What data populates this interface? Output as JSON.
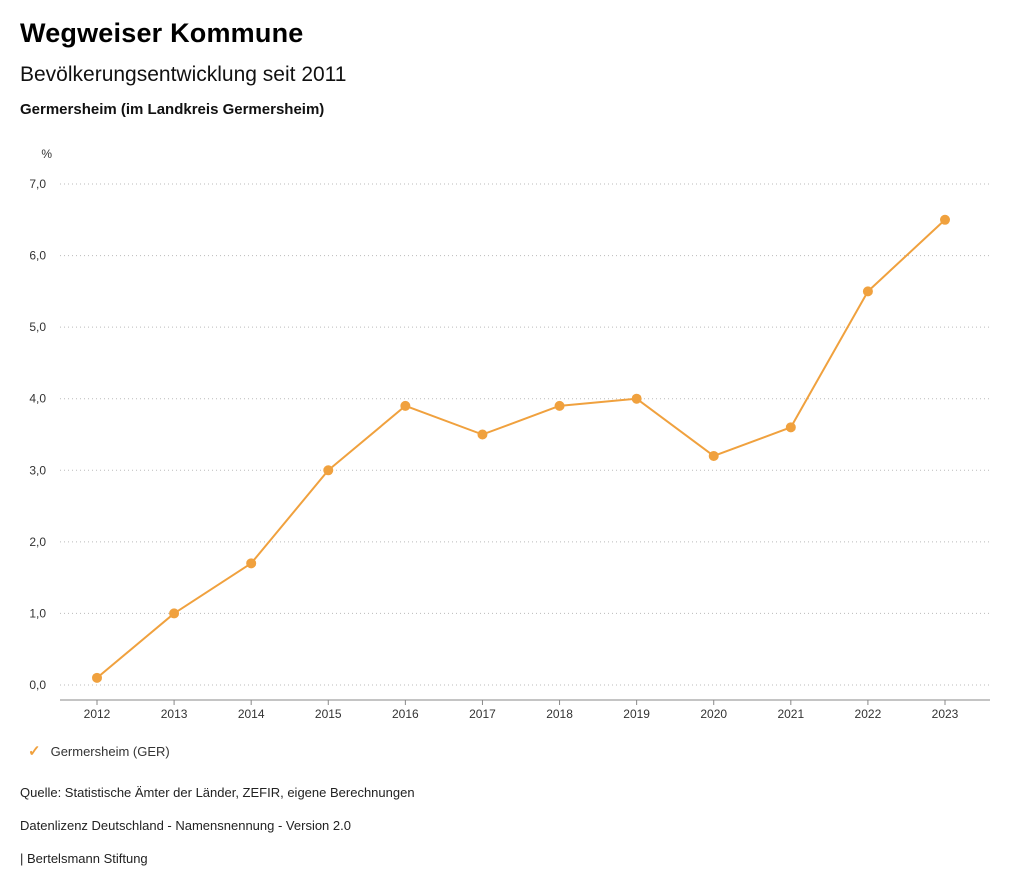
{
  "header": {
    "title": "Wegweiser Kommune",
    "subtitle": "Bevölkerungsentwicklung seit 2011",
    "region": "Germersheim (im Landkreis Germersheim)"
  },
  "chart_data": {
    "type": "line",
    "title": "Bevölkerungsentwicklung seit 2011",
    "unit_label": "%",
    "x": [
      2012,
      2013,
      2014,
      2015,
      2016,
      2017,
      2018,
      2019,
      2020,
      2021,
      2022,
      2023
    ],
    "series": [
      {
        "name": "Germersheim (GER)",
        "values": [
          0.1,
          1.0,
          1.7,
          3.0,
          3.9,
          3.5,
          3.9,
          4.0,
          3.2,
          3.6,
          5.5,
          6.5
        ],
        "color": "#f0a13e"
      }
    ],
    "ylim": [
      0,
      7
    ],
    "ytick_labels": [
      "0,0",
      "1,0",
      "2,0",
      "3,0",
      "4,0",
      "5,0",
      "6,0",
      "7,0"
    ],
    "grid": "horizontal-dotted",
    "grid_color": "#bbbbbb",
    "axis_color": "#888888",
    "legend_position": "bottom-left"
  },
  "legend": {
    "items": [
      {
        "label": "Germersheim (GER)",
        "marker": "check",
        "color": "#f0a13e"
      }
    ]
  },
  "footer": {
    "source": "Quelle: Statistische Ämter der Länder, ZEFIR, eigene Berechnungen",
    "license": "Datenlizenz Deutschland - Namensnennung - Version 2.0",
    "attribution": "| Bertelsmann Stiftung"
  }
}
